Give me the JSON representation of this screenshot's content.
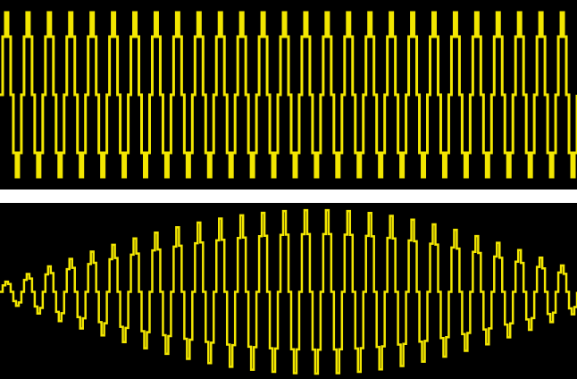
{
  "chart_data": [
    {
      "type": "line",
      "title": "",
      "xlabel": "",
      "ylabel": "",
      "grid": false,
      "background": "#000000",
      "series": [
        {
          "color": "#f2e600",
          "cycles": 27,
          "amplitude_profile": "constant",
          "amplitude_start": 1.0,
          "amplitude_end": 1.0,
          "quantized": true,
          "quant_steps": 8
        }
      ]
    },
    {
      "type": "line",
      "title": "",
      "xlabel": "",
      "ylabel": "",
      "grid": false,
      "background": "#000000",
      "series": [
        {
          "color": "#f2e600",
          "cycles": 27,
          "amplitude_profile": "rising-then-falling",
          "amplitude_start": 0.1,
          "amplitude_peak": 1.0,
          "amplitude_end": 0.25,
          "quantized": true,
          "quant_steps": 8
        }
      ]
    }
  ]
}
